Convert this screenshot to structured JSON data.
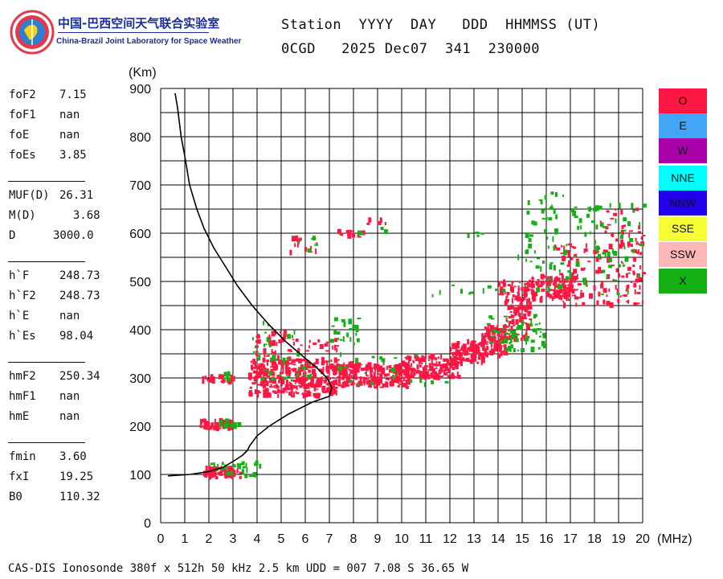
{
  "header": {
    "org_cn": "中国-巴西空间天气联合实验室",
    "org_en": "China-Brazil Joint Laboratory for Space Weather",
    "line1": "Station  YYYY  DAY   DDD  HHMMSS (UT)",
    "line2": "0CGD   2025 Dec07  341  230000"
  },
  "params": [
    {
      "name": "foF2",
      "value": "7.15"
    },
    {
      "name": "foF1",
      "value": "nan"
    },
    {
      "name": "foE",
      "value": "nan"
    },
    {
      "name": "foEs",
      "value": "3.85"
    },
    {
      "name": "MUF(D)",
      "value": "26.31"
    },
    {
      "name": "M(D)",
      "value": "  3.68"
    },
    {
      "name": "D",
      "value": "3000.0"
    },
    {
      "name": "h`F",
      "value": "248.73"
    },
    {
      "name": "h`F2",
      "value": "248.73"
    },
    {
      "name": "h`E",
      "value": "nan"
    },
    {
      "name": "h`Es",
      "value": "98.04"
    },
    {
      "name": "hmF2",
      "value": "250.34"
    },
    {
      "name": "hmF1",
      "value": "nan"
    },
    {
      "name": "hmE",
      "value": "nan"
    },
    {
      "name": "fmin",
      "value": "3.60"
    },
    {
      "name": "fxI",
      "value": "19.25"
    },
    {
      "name": "B0",
      "value": "110.32"
    }
  ],
  "legend": [
    {
      "label": "O",
      "color": "#ff1744"
    },
    {
      "label": "E",
      "color": "#42a5f5"
    },
    {
      "label": "W",
      "color": "#aa00aa"
    },
    {
      "label": "NNE",
      "color": "#00ffff"
    },
    {
      "label": "NNW",
      "color": "#2200ee"
    },
    {
      "label": "SSE",
      "color": "#f5ff33"
    },
    {
      "label": "SSW",
      "color": "#ffb6b6"
    },
    {
      "label": "X",
      "color": "#14b014"
    }
  ],
  "footer": "CAS-DIS Ionosonde 380f x 512h 50 kHz 2.5 km UDD = 007 7.08 S 36.65 W",
  "chart_data": {
    "type": "scatter",
    "xlabel": "(MHz)",
    "ylabel": "(Km)",
    "xlim": [
      0,
      20
    ],
    "ylim": [
      0,
      900
    ],
    "xticks": [
      "0",
      "1",
      "2",
      "3",
      "4",
      "5",
      "6",
      "7",
      "8",
      "9",
      "10",
      "11",
      "12",
      "13",
      "14",
      "15",
      "16",
      "17",
      "18",
      "19",
      "20"
    ],
    "yticks": [
      "0",
      "100",
      "200",
      "300",
      "400",
      "500",
      "600",
      "700",
      "800",
      "900"
    ],
    "x_grid_step": 1,
    "y_grid_step": 50,
    "grid": true,
    "profile_curve": [
      [
        0.6,
        890
      ],
      [
        0.7,
        860
      ],
      [
        0.85,
        800
      ],
      [
        1.0,
        760
      ],
      [
        1.2,
        700
      ],
      [
        1.5,
        650
      ],
      [
        1.8,
        610
      ],
      [
        2.2,
        570
      ],
      [
        2.7,
        530
      ],
      [
        3.2,
        490
      ],
      [
        3.8,
        450
      ],
      [
        4.5,
        410
      ],
      [
        5.2,
        375
      ],
      [
        5.9,
        345
      ],
      [
        6.5,
        320
      ],
      [
        6.9,
        300
      ],
      [
        7.1,
        280
      ],
      [
        7.0,
        262
      ],
      [
        6.3,
        250
      ],
      [
        5.3,
        225
      ],
      [
        4.5,
        200
      ],
      [
        4.0,
        180
      ],
      [
        3.7,
        160
      ],
      [
        3.6,
        150
      ],
      [
        3.4,
        140
      ],
      [
        3.1,
        130
      ],
      [
        2.6,
        115
      ],
      [
        2.0,
        106
      ],
      [
        1.2,
        100
      ],
      [
        0.3,
        97
      ]
    ],
    "series": [
      {
        "name": "O",
        "color": "#ff1744",
        "clusters": [
          {
            "f": [
              1.7,
              3.3
            ],
            "h": [
              93,
              115
            ],
            "n": 70
          },
          {
            "f": [
              1.6,
              2.9
            ],
            "h": [
              195,
              212
            ],
            "n": 55
          },
          {
            "f": [
              1.6,
              3.2
            ],
            "h": [
              292,
              303
            ],
            "n": 22
          },
          {
            "f": [
              3.6,
              7.3
            ],
            "h": [
              262,
              340
            ],
            "n": 360
          },
          {
            "f": [
              3.8,
              5.5
            ],
            "h": [
              330,
              395
            ],
            "n": 45
          },
          {
            "f": [
              5.2,
              7.3
            ],
            "h": [
              355,
              380
            ],
            "n": 20
          },
          {
            "f": [
              7.3,
              10.3
            ],
            "h": [
              280,
              330
            ],
            "n": 220
          },
          {
            "f": [
              10.0,
              12.3
            ],
            "h": [
              300,
              345
            ],
            "n": 140
          },
          {
            "f": [
              12.0,
              13.4
            ],
            "h": [
              330,
              375
            ],
            "n": 110
          },
          {
            "f": [
              13.3,
              14.3
            ],
            "h": [
              345,
              410
            ],
            "n": 110
          },
          {
            "f": [
              14.2,
              15.3
            ],
            "h": [
              380,
              470
            ],
            "n": 90
          },
          {
            "f": [
              15.0,
              17.2
            ],
            "h": [
              460,
              510
            ],
            "n": 120
          },
          {
            "f": [
              14.0,
              15.5
            ],
            "h": [
              470,
              500
            ],
            "n": 30
          },
          {
            "f": [
              16.3,
              20.0
            ],
            "h": [
              450,
              580
            ],
            "n": 130
          },
          {
            "f": [
              5.2,
              6.6
            ],
            "h": [
              555,
              590
            ],
            "n": 16
          },
          {
            "f": [
              7.3,
              8.4
            ],
            "h": [
              592,
              605
            ],
            "n": 14
          },
          {
            "f": [
              8.5,
              9.5
            ],
            "h": [
              612,
              628
            ],
            "n": 6
          },
          {
            "f": [
              18.2,
              20.0
            ],
            "h": [
              580,
              650
            ],
            "n": 25
          }
        ]
      },
      {
        "name": "X",
        "color": "#14b014",
        "clusters": [
          {
            "f": [
              2.0,
              4.1
            ],
            "h": [
              95,
              125
            ],
            "n": 30
          },
          {
            "f": [
              2.4,
              3.2
            ],
            "h": [
              198,
              212
            ],
            "n": 14
          },
          {
            "f": [
              2.5,
              3.2
            ],
            "h": [
              295,
              310
            ],
            "n": 8
          },
          {
            "f": [
              3.8,
              5.8
            ],
            "h": [
              330,
              415
            ],
            "n": 25
          },
          {
            "f": [
              7.0,
              8.2
            ],
            "h": [
              370,
              425
            ],
            "n": 22
          },
          {
            "f": [
              4.0,
              12.0
            ],
            "h": [
              285,
              350
            ],
            "n": 40
          },
          {
            "f": [
              13.4,
              15.9
            ],
            "h": [
              355,
              430
            ],
            "n": 60
          },
          {
            "f": [
              11.2,
              14.2
            ],
            "h": [
              470,
              500
            ],
            "n": 10
          },
          {
            "f": [
              14.8,
              17.0
            ],
            "h": [
              480,
              620
            ],
            "n": 40
          },
          {
            "f": [
              15.0,
              16.8
            ],
            "h": [
              620,
              690
            ],
            "n": 18
          },
          {
            "f": [
              17.0,
              20.0
            ],
            "h": [
              470,
              660
            ],
            "n": 70
          },
          {
            "f": [
              12.5,
              13.5
            ],
            "h": [
              590,
              605
            ],
            "n": 4
          },
          {
            "f": [
              5.0,
              6.5
            ],
            "h": [
              560,
              590
            ],
            "n": 5
          },
          {
            "f": [
              7.7,
              9.3
            ],
            "h": [
              598,
              612
            ],
            "n": 4
          }
        ]
      }
    ]
  }
}
